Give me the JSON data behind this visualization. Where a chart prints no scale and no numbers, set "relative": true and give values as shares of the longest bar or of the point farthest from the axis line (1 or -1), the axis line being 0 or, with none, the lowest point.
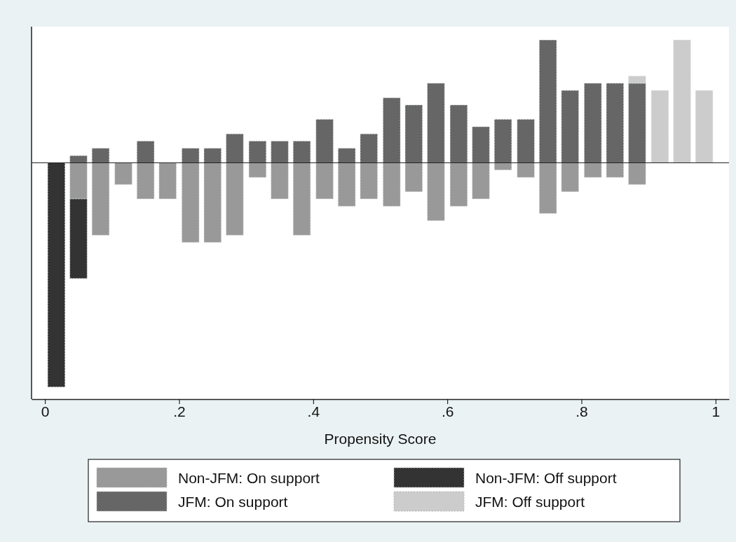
{
  "chart_data": {
    "type": "bar",
    "relative": true,
    "stacked": true,
    "xlabel": "Propensity Score",
    "x": [
      0.017,
      0.05,
      0.083,
      0.117,
      0.15,
      0.183,
      0.217,
      0.25,
      0.283,
      0.317,
      0.35,
      0.383,
      0.417,
      0.45,
      0.483,
      0.517,
      0.55,
      0.583,
      0.617,
      0.65,
      0.683,
      0.717,
      0.75,
      0.783,
      0.817,
      0.85,
      0.883,
      0.917,
      0.95,
      0.983
    ],
    "xlim": [
      -0.02,
      1.02
    ],
    "xticks": [
      0,
      {
        "value": 0.2,
        "label": ".2"
      },
      {
        "value": 0.4,
        "label": ".4"
      },
      {
        "value": 0.6,
        "label": ".6"
      },
      {
        "value": 0.8,
        "label": ".8"
      },
      1
    ],
    "series": [
      {
        "name": "Non-JFM: On support",
        "color": "#999999",
        "values": [
          0,
          -0.161,
          -0.323,
          -0.097,
          -0.161,
          -0.161,
          -0.355,
          -0.355,
          -0.323,
          -0.065,
          -0.161,
          -0.323,
          -0.161,
          -0.194,
          -0.161,
          -0.194,
          -0.129,
          -0.258,
          -0.194,
          -0.161,
          -0.032,
          -0.065,
          -0.226,
          -0.129,
          -0.065,
          -0.065,
          -0.097,
          0,
          0,
          0
        ]
      },
      {
        "name": "Non-JFM: Off support",
        "color": "#333333",
        "values": [
          -1,
          -0.355,
          0,
          0,
          0,
          0,
          0,
          0,
          0,
          0,
          0,
          0,
          0,
          0,
          0,
          0,
          0,
          0,
          0,
          0,
          0,
          0,
          0,
          0,
          0,
          0,
          0,
          0,
          0,
          0
        ]
      },
      {
        "name": "JFM: On support",
        "color": "#666666",
        "values": [
          0,
          0.032,
          0.065,
          0,
          0.097,
          0,
          0.065,
          0.065,
          0.129,
          0.097,
          0.097,
          0.097,
          0.194,
          0.065,
          0.129,
          0.29,
          0.258,
          0.355,
          0.258,
          0.161,
          0.194,
          0.194,
          0.548,
          0.323,
          0.355,
          0.355,
          0.355,
          0,
          0,
          0
        ]
      },
      {
        "name": "JFM: Off support",
        "color": "#cccccc",
        "values": [
          0,
          0,
          0,
          0,
          0,
          0,
          0,
          0,
          0,
          0,
          0,
          0,
          0,
          0,
          0,
          0,
          0,
          0,
          0,
          0,
          0,
          0,
          0,
          0,
          0,
          0,
          0.032,
          0.323,
          0.548,
          0.323
        ]
      }
    ],
    "legend": "bottom",
    "grid": false
  }
}
